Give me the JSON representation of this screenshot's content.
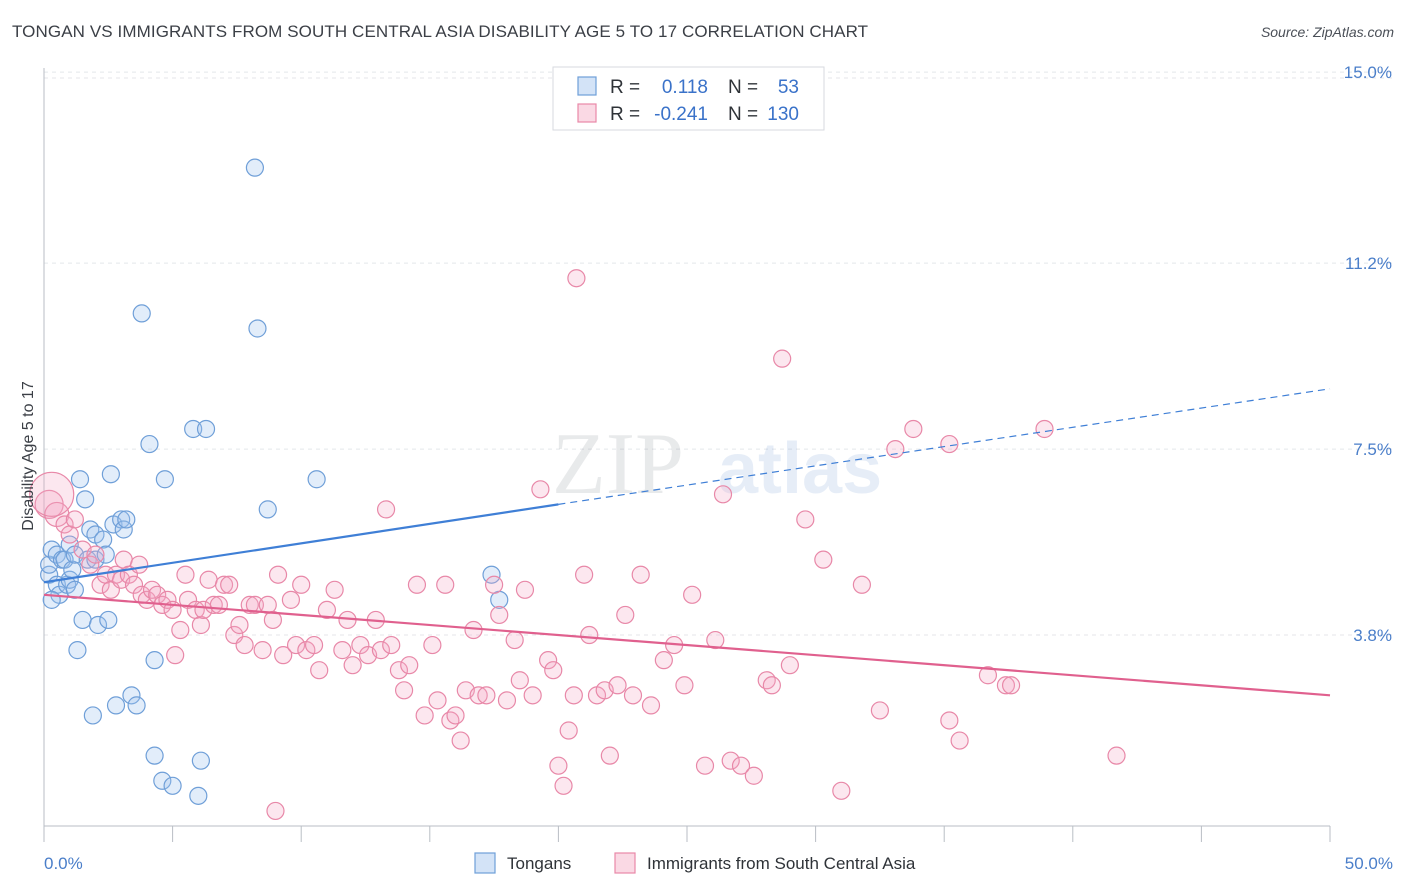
{
  "header": {
    "title": "TONGAN VS IMMIGRANTS FROM SOUTH CENTRAL ASIA DISABILITY AGE 5 TO 17 CORRELATION CHART",
    "source": "Source: ZipAtlas.com"
  },
  "watermark": {
    "part1": "ZIP",
    "part2": "atlas"
  },
  "chart_data": {
    "type": "scatter",
    "ylabel": "Disability Age 5 to 17",
    "xlim": [
      0,
      50
    ],
    "ylim": [
      0,
      15.7
    ],
    "x_tick_labels": [
      {
        "value": 0,
        "label": "0.0%"
      },
      {
        "value": 50,
        "label": "50.0%"
      }
    ],
    "y_tick_labels": [
      {
        "value": 3.8,
        "label": "3.8%"
      },
      {
        "value": 7.5,
        "label": "7.5%"
      },
      {
        "value": 11.2,
        "label": "11.2%"
      },
      {
        "value": 15.0,
        "label": "15.0%"
      }
    ],
    "legend_top": [
      {
        "r_label": "R =",
        "r_value": "0.118",
        "n_label": "N =",
        "n_value": "53",
        "color": "#6f9fd8"
      },
      {
        "r_label": "R =",
        "r_value": "-0.241",
        "n_label": "N =",
        "n_value": "130",
        "color": "#e888a8"
      }
    ],
    "legend_bottom": [
      {
        "label": "Tongans",
        "color": "#6f9fd8"
      },
      {
        "label": "Immigrants from South Central Asia",
        "color": "#e888a8"
      }
    ],
    "series": [
      {
        "name": "Tongans",
        "color": "#6f9fd8",
        "fill": "rgba(158,194,238,0.30)",
        "trend": {
          "x0": 0,
          "y0": 4.85,
          "x1": 20,
          "y1": 6.4,
          "x_dash_end": 50,
          "y_dash_end": 8.7,
          "color": "#3f7fd6"
        },
        "points": [
          [
            0.2,
            5.0
          ],
          [
            0.2,
            5.2
          ],
          [
            0.3,
            5.5
          ],
          [
            0.5,
            5.4
          ],
          [
            0.5,
            4.8
          ],
          [
            0.6,
            4.6
          ],
          [
            0.7,
            5.3
          ],
          [
            0.8,
            5.3
          ],
          [
            0.9,
            4.8
          ],
          [
            1.0,
            4.9
          ],
          [
            1.0,
            5.6
          ],
          [
            1.1,
            5.1
          ],
          [
            1.2,
            4.7
          ],
          [
            1.2,
            5.4
          ],
          [
            1.3,
            3.5
          ],
          [
            1.4,
            6.9
          ],
          [
            1.5,
            4.1
          ],
          [
            1.6,
            6.5
          ],
          [
            1.7,
            5.3
          ],
          [
            1.8,
            5.9
          ],
          [
            1.9,
            2.2
          ],
          [
            2.0,
            5.8
          ],
          [
            2.0,
            5.3
          ],
          [
            2.1,
            4.0
          ],
          [
            2.3,
            5.7
          ],
          [
            2.4,
            5.4
          ],
          [
            2.5,
            4.1
          ],
          [
            2.6,
            7.0
          ],
          [
            2.7,
            6.0
          ],
          [
            2.8,
            2.4
          ],
          [
            3.0,
            6.1
          ],
          [
            3.1,
            5.9
          ],
          [
            3.2,
            6.1
          ],
          [
            3.4,
            2.6
          ],
          [
            3.6,
            2.4
          ],
          [
            3.8,
            10.2
          ],
          [
            4.1,
            7.6
          ],
          [
            4.3,
            1.4
          ],
          [
            4.3,
            3.3
          ],
          [
            4.6,
            0.9
          ],
          [
            4.7,
            6.9
          ],
          [
            5.0,
            0.8
          ],
          [
            5.8,
            7.9
          ],
          [
            6.0,
            0.6
          ],
          [
            6.1,
            1.3
          ],
          [
            6.3,
            7.9
          ],
          [
            8.2,
            13.1
          ],
          [
            8.3,
            9.9
          ],
          [
            8.7,
            6.3
          ],
          [
            10.6,
            6.9
          ],
          [
            17.4,
            5.0
          ],
          [
            17.7,
            4.5
          ],
          [
            0.3,
            4.5
          ]
        ]
      },
      {
        "name": "Immigrants from South Central Asia",
        "color": "#e888a8",
        "fill": "rgba(244,170,196,0.28)",
        "trend": {
          "x0": 0,
          "y0": 4.6,
          "x1": 50,
          "y1": 2.6,
          "color": "#e0608e"
        },
        "points": [
          [
            0.2,
            6.4
          ],
          [
            0.5,
            6.2
          ],
          [
            0.8,
            6.0
          ],
          [
            1.0,
            5.8
          ],
          [
            1.2,
            6.1
          ],
          [
            1.5,
            5.5
          ],
          [
            1.8,
            5.2
          ],
          [
            2.0,
            5.4
          ],
          [
            2.2,
            4.8
          ],
          [
            2.4,
            5.0
          ],
          [
            2.6,
            4.7
          ],
          [
            2.8,
            5.0
          ],
          [
            3.0,
            4.9
          ],
          [
            3.1,
            5.3
          ],
          [
            3.3,
            5.0
          ],
          [
            3.5,
            4.8
          ],
          [
            3.7,
            5.2
          ],
          [
            3.8,
            4.6
          ],
          [
            4.0,
            4.5
          ],
          [
            4.2,
            4.7
          ],
          [
            4.4,
            4.6
          ],
          [
            4.6,
            4.4
          ],
          [
            4.8,
            4.5
          ],
          [
            5.0,
            4.3
          ],
          [
            5.1,
            3.4
          ],
          [
            5.3,
            3.9
          ],
          [
            5.5,
            5.0
          ],
          [
            5.6,
            4.5
          ],
          [
            5.9,
            4.3
          ],
          [
            6.1,
            4.0
          ],
          [
            6.2,
            4.3
          ],
          [
            6.4,
            4.9
          ],
          [
            6.6,
            4.4
          ],
          [
            6.8,
            4.4
          ],
          [
            7.0,
            4.8
          ],
          [
            7.2,
            4.8
          ],
          [
            7.4,
            3.8
          ],
          [
            7.6,
            4.0
          ],
          [
            7.8,
            3.6
          ],
          [
            8.0,
            4.4
          ],
          [
            8.2,
            4.4
          ],
          [
            8.5,
            3.5
          ],
          [
            8.7,
            4.4
          ],
          [
            8.9,
            4.1
          ],
          [
            9.1,
            5.0
          ],
          [
            9.3,
            3.4
          ],
          [
            9.6,
            4.5
          ],
          [
            9.8,
            3.6
          ],
          [
            10.0,
            4.8
          ],
          [
            10.2,
            3.5
          ],
          [
            10.5,
            3.6
          ],
          [
            10.7,
            3.1
          ],
          [
            11.0,
            4.3
          ],
          [
            11.3,
            4.7
          ],
          [
            11.6,
            3.5
          ],
          [
            11.8,
            4.1
          ],
          [
            12.0,
            3.2
          ],
          [
            12.3,
            3.6
          ],
          [
            12.6,
            3.4
          ],
          [
            12.9,
            4.1
          ],
          [
            13.1,
            3.5
          ],
          [
            13.3,
            6.3
          ],
          [
            13.5,
            3.6
          ],
          [
            13.8,
            3.1
          ],
          [
            14.0,
            2.7
          ],
          [
            14.2,
            3.2
          ],
          [
            14.5,
            4.8
          ],
          [
            14.8,
            2.2
          ],
          [
            15.1,
            3.6
          ],
          [
            15.3,
            2.5
          ],
          [
            15.6,
            4.8
          ],
          [
            15.8,
            2.1
          ],
          [
            16.0,
            2.2
          ],
          [
            16.2,
            1.7
          ],
          [
            16.4,
            2.7
          ],
          [
            16.7,
            3.9
          ],
          [
            16.9,
            2.6
          ],
          [
            17.2,
            2.6
          ],
          [
            17.5,
            4.8
          ],
          [
            17.7,
            4.2
          ],
          [
            18.0,
            2.5
          ],
          [
            18.3,
            3.7
          ],
          [
            18.5,
            2.9
          ],
          [
            18.7,
            4.7
          ],
          [
            19.0,
            2.6
          ],
          [
            19.3,
            6.7
          ],
          [
            19.6,
            3.3
          ],
          [
            19.8,
            3.1
          ],
          [
            20.0,
            1.2
          ],
          [
            20.2,
            0.8
          ],
          [
            20.4,
            1.9
          ],
          [
            20.6,
            2.6
          ],
          [
            21.0,
            5.0
          ],
          [
            21.2,
            3.8
          ],
          [
            21.5,
            2.6
          ],
          [
            21.8,
            2.7
          ],
          [
            22.0,
            1.4
          ],
          [
            22.3,
            2.8
          ],
          [
            22.6,
            4.2
          ],
          [
            22.9,
            2.6
          ],
          [
            23.2,
            5.0
          ],
          [
            23.6,
            2.4
          ],
          [
            24.1,
            3.3
          ],
          [
            24.5,
            3.6
          ],
          [
            24.9,
            2.8
          ],
          [
            25.2,
            4.6
          ],
          [
            25.7,
            1.2
          ],
          [
            26.1,
            3.7
          ],
          [
            26.4,
            6.6
          ],
          [
            26.7,
            1.3
          ],
          [
            27.1,
            1.2
          ],
          [
            27.6,
            1.0
          ],
          [
            28.1,
            2.9
          ],
          [
            28.3,
            2.8
          ],
          [
            28.7,
            9.3
          ],
          [
            29.0,
            3.2
          ],
          [
            29.6,
            6.1
          ],
          [
            30.3,
            5.3
          ],
          [
            31.0,
            0.7
          ],
          [
            31.8,
            4.8
          ],
          [
            32.5,
            2.3
          ],
          [
            33.1,
            7.5
          ],
          [
            33.8,
            7.9
          ],
          [
            35.2,
            2.1
          ],
          [
            35.6,
            1.7
          ],
          [
            35.2,
            7.6
          ],
          [
            36.7,
            3.0
          ],
          [
            37.4,
            2.8
          ],
          [
            37.6,
            2.8
          ],
          [
            38.9,
            7.9
          ],
          [
            41.7,
            1.4
          ],
          [
            9.0,
            0.3
          ],
          [
            20.7,
            10.9
          ],
          [
            0.3,
            6.6
          ]
        ]
      }
    ]
  }
}
